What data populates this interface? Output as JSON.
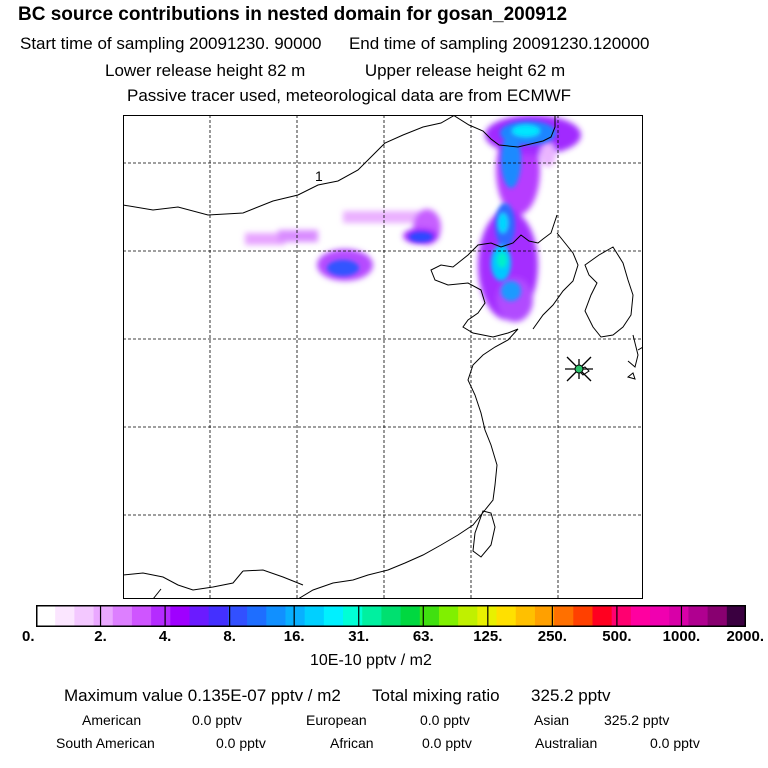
{
  "header": {
    "title": "BC  source contributions in nested domain for gosan_200912",
    "start_label": "Start time of sampling 20091230. 90000",
    "end_label": "End time of sampling 20091230.120000",
    "lower_label": "Lower release height   82 m",
    "upper_label": "Upper release height   62 m",
    "tracer_note": "Passive tracer used, meteorological data are from ECMWF"
  },
  "map": {
    "contour_label": "1",
    "receptor_marker": "gosan-receptor-star",
    "colors": {
      "coast": "#000000",
      "grid": "#000000",
      "marker": "#000000"
    }
  },
  "colorbar": {
    "tick_labels": [
      "0.",
      "2.",
      "4.",
      "8.",
      "16.",
      "31.",
      "63.",
      "125.",
      "250.",
      "500.",
      "1000.",
      "2000."
    ],
    "colors": [
      "#ffffff",
      "#fbe6ff",
      "#f3c8ff",
      "#eaa8ff",
      "#dd7fff",
      "#cf55ff",
      "#b52bff",
      "#9f00ff",
      "#6b1bff",
      "#4430ff",
      "#3250ff",
      "#1e6eff",
      "#1190ff",
      "#08b0ff",
      "#00d0ff",
      "#00f0ff",
      "#00ffd6",
      "#00f0a0",
      "#00e070",
      "#00d840",
      "#40e010",
      "#80f000",
      "#c0f000",
      "#e8f000",
      "#ffe000",
      "#ffc000",
      "#ffa000",
      "#ff7000",
      "#ff4000",
      "#ff0020",
      "#ff0070",
      "#ff00a0",
      "#f000b0",
      "#d800a8",
      "#b00090",
      "#880070",
      "#3a0040"
    ],
    "unit": "10E-10 pptv / m2"
  },
  "summary": {
    "max_label": "Maximum value  0.135E-07 pptv / m2",
    "total_label": "Total mixing ratio",
    "total_value": "325.2 pptv",
    "regions": [
      {
        "name": "American",
        "value": "0.0 pptv"
      },
      {
        "name": "European",
        "value": "0.0 pptv"
      },
      {
        "name": "Asian",
        "value": "325.2 pptv"
      },
      {
        "name": "South American",
        "value": "0.0 pptv"
      },
      {
        "name": "African",
        "value": "0.0 pptv"
      },
      {
        "name": "Australian",
        "value": "0.0 pptv"
      }
    ]
  }
}
